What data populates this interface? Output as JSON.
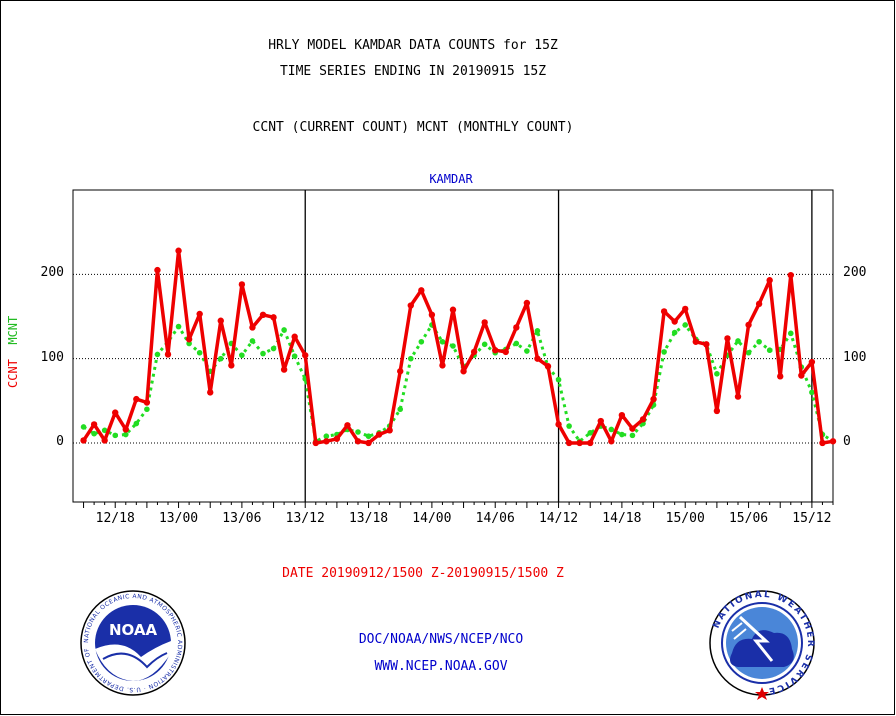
{
  "titles": {
    "line1": "HRLY MODEL KAMDAR DATA COUNTS for 15Z",
    "line2": "TIME SERIES ENDING IN 20190915 15Z",
    "line3": "CCNT (CURRENT COUNT) MCNT (MONTHLY COUNT)"
  },
  "footer": {
    "date_range": "DATE 20190912/1500 Z-20190915/1500 Z",
    "org": "DOC/NOAA/NWS/NCEP/NCO",
    "url": "WWW.NCEP.NOAA.GOV",
    "noaa_logo_text": "NOAA",
    "noaa_ring_text": "NATIONAL OCEANIC AND ATMOSPHERIC ADMINISTRATION · U.S. DEPARTMENT OF COMMERCE",
    "nws_ring_text": "NATIONAL WEATHER SERVICE"
  },
  "colors": {
    "ccnt": "#ee0000",
    "mcnt": "#22dd22",
    "label_blue": "#0000cc",
    "text": "#000000"
  },
  "chart_data": {
    "type": "line",
    "title": "KAMDAR",
    "ylabel_ccnt": "CCNT",
    "ylabel_mcnt": "MCNT",
    "ylim": [
      -70,
      300
    ],
    "yticks": [
      0,
      100,
      200
    ],
    "grid": true,
    "x_range_hours": [
      -1,
      71
    ],
    "xticks": [
      {
        "h": 3,
        "label": "12/18"
      },
      {
        "h": 9,
        "label": "13/00"
      },
      {
        "h": 15,
        "label": "13/06"
      },
      {
        "h": 21,
        "label": "13/12"
      },
      {
        "h": 27,
        "label": "13/18"
      },
      {
        "h": 33,
        "label": "14/00"
      },
      {
        "h": 39,
        "label": "14/06"
      },
      {
        "h": 45,
        "label": "14/12"
      },
      {
        "h": 51,
        "label": "14/18"
      },
      {
        "h": 57,
        "label": "15/00"
      },
      {
        "h": 63,
        "label": "15/06"
      },
      {
        "h": 69,
        "label": "15/12"
      }
    ],
    "day_boundaries_hours": [
      21,
      45,
      69
    ],
    "x_hours_start": 0,
    "series": [
      {
        "name": "CCNT",
        "color": "#ee0000",
        "values": [
          3,
          22,
          3,
          36,
          16,
          52,
          48,
          205,
          105,
          228,
          123,
          153,
          60,
          145,
          92,
          188,
          137,
          152,
          149,
          87,
          126,
          104,
          0,
          2,
          5,
          21,
          2,
          0,
          10,
          15,
          85,
          163,
          181,
          152,
          92,
          158,
          85,
          108,
          143,
          110,
          108,
          137,
          166,
          100,
          91,
          22,
          0,
          0,
          0,
          26,
          2,
          33,
          17,
          28,
          52,
          156,
          144,
          159,
          120,
          117,
          38,
          124,
          55,
          140,
          165,
          193,
          79,
          199,
          80,
          96,
          0,
          2
        ]
      },
      {
        "name": "MCNT",
        "color": "#22dd22",
        "values": [
          19,
          11,
          15,
          9,
          10,
          23,
          40,
          105,
          120,
          138,
          118,
          107,
          85,
          100,
          118,
          104,
          121,
          106,
          112,
          134,
          103,
          76,
          2,
          8,
          10,
          16,
          13,
          8,
          12,
          20,
          40,
          100,
          120,
          140,
          120,
          115,
          90,
          104,
          117,
          107,
          111,
          118,
          109,
          133,
          90,
          75,
          20,
          2,
          12,
          20,
          16,
          10,
          9,
          23,
          45,
          108,
          131,
          140,
          123,
          117,
          82,
          104,
          121,
          107,
          120,
          110,
          111,
          130,
          90,
          60,
          10,
          2
        ]
      }
    ]
  }
}
